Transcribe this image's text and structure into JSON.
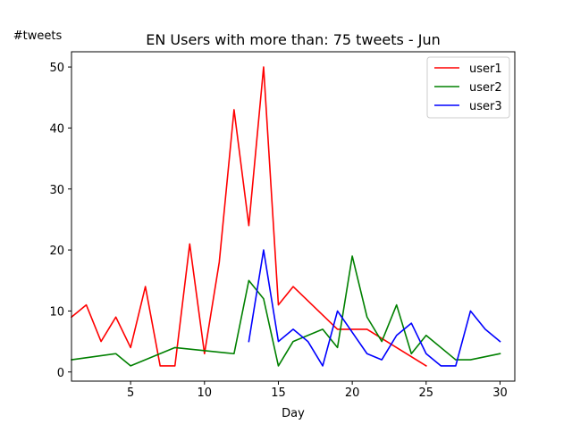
{
  "chart_data": {
    "type": "line",
    "title": "EN Users with more than: 75 tweets - Jun",
    "xlabel": "Day",
    "ylabel": "#tweets",
    "xlim": [
      1,
      31
    ],
    "ylim": [
      -1.5,
      52.5
    ],
    "xticks": [
      5,
      10,
      15,
      20,
      25,
      30
    ],
    "yticks": [
      0,
      10,
      20,
      30,
      40,
      50
    ],
    "grid": false,
    "legend_position": "top-right",
    "series": [
      {
        "name": "user1",
        "color": "#ff0000",
        "points": [
          [
            1,
            9
          ],
          [
            2,
            11
          ],
          [
            3,
            5
          ],
          [
            4,
            9
          ],
          [
            5,
            4
          ],
          [
            6,
            14
          ],
          [
            7,
            1
          ],
          [
            8,
            1
          ],
          [
            9,
            21
          ],
          [
            10,
            3
          ],
          [
            11,
            18
          ],
          [
            12,
            43
          ],
          [
            13,
            24
          ],
          [
            14,
            50
          ],
          [
            15,
            11
          ],
          [
            16,
            14
          ],
          [
            19,
            7
          ],
          [
            20,
            7
          ],
          [
            21,
            7
          ],
          [
            25,
            1
          ]
        ]
      },
      {
        "name": "user2",
        "color": "#008000",
        "points": [
          [
            1,
            2
          ],
          [
            4,
            3
          ],
          [
            5,
            1
          ],
          [
            8,
            4
          ],
          [
            12,
            3
          ],
          [
            13,
            15
          ],
          [
            14,
            12
          ],
          [
            15,
            1
          ],
          [
            16,
            5
          ],
          [
            18,
            7
          ],
          [
            19,
            4
          ],
          [
            20,
            19
          ],
          [
            21,
            9
          ],
          [
            22,
            5
          ],
          [
            23,
            11
          ],
          [
            24,
            3
          ],
          [
            25,
            6
          ],
          [
            27,
            2
          ],
          [
            28,
            2
          ],
          [
            30,
            3
          ]
        ]
      },
      {
        "name": "user3",
        "color": "#0000ff",
        "points": [
          [
            13,
            5
          ],
          [
            14,
            20
          ],
          [
            15,
            5
          ],
          [
            16,
            7
          ],
          [
            17,
            5
          ],
          [
            18,
            1
          ],
          [
            19,
            10
          ],
          [
            21,
            3
          ],
          [
            22,
            2
          ],
          [
            23,
            6
          ],
          [
            24,
            8
          ],
          [
            25,
            3
          ],
          [
            26,
            1
          ],
          [
            27,
            1
          ],
          [
            28,
            10
          ],
          [
            29,
            7
          ],
          [
            30,
            5
          ]
        ]
      }
    ]
  }
}
